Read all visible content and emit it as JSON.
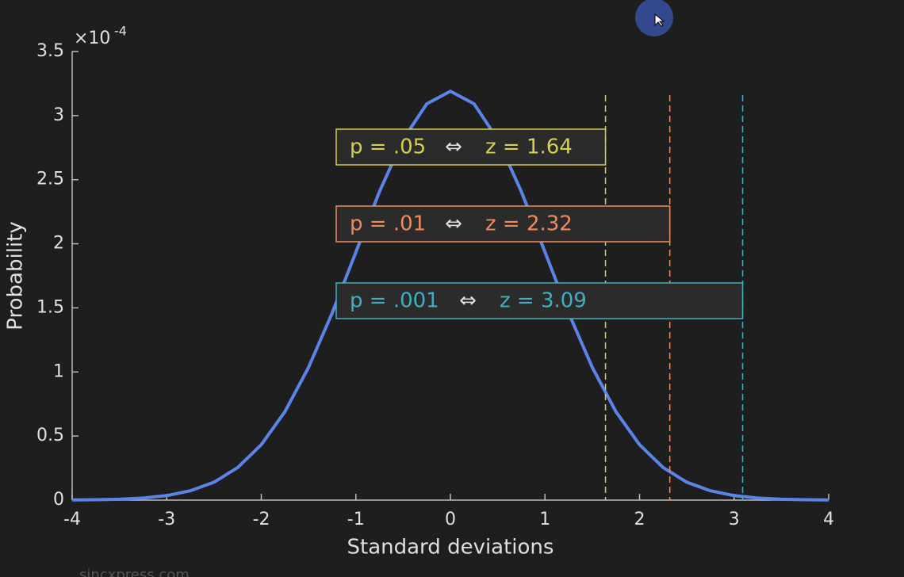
{
  "chart_data": {
    "type": "line",
    "x_label": "Standard deviations",
    "y_label": "Probability",
    "y_multiplier": "×10",
    "y_multiplier_exponent": "-4",
    "x": [
      -4,
      -3.75,
      -3.5,
      -3.25,
      -3,
      -2.75,
      -2.5,
      -2.25,
      -2,
      -1.75,
      -1.5,
      -1.25,
      -1,
      -0.75,
      -0.5,
      -0.25,
      0,
      0.25,
      0.5,
      0.75,
      1,
      1.25,
      1.5,
      1.75,
      2,
      2.25,
      2.5,
      2.75,
      3,
      3.25,
      3.5,
      3.75,
      4
    ],
    "series": [
      {
        "color": "#5b84e8",
        "values": [
          0.001,
          0.003,
          0.007,
          0.016,
          0.035,
          0.073,
          0.14,
          0.254,
          0.432,
          0.69,
          1.036,
          1.46,
          1.935,
          2.408,
          2.815,
          3.092,
          3.19,
          3.092,
          2.815,
          2.408,
          1.935,
          1.46,
          1.036,
          0.69,
          0.432,
          0.254,
          0.14,
          0.073,
          0.035,
          0.016,
          0.007,
          0.003,
          0.001
        ]
      }
    ],
    "xlim": [
      -4,
      4
    ],
    "xticks": [
      -4,
      -3,
      -2,
      -1,
      0,
      1,
      2,
      3,
      4
    ],
    "ylim": [
      0,
      3.5
    ],
    "yticks": [
      0,
      0.5,
      1,
      1.5,
      2,
      2.5,
      3,
      3.5
    ],
    "annotations": [
      {
        "p": "p = .05",
        "arrow": "⇔",
        "z": "z = 1.64",
        "x": 1.64,
        "color": "#d8cf4a"
      },
      {
        "p": "p = .01",
        "arrow": "⇔",
        "z": "z = 2.32",
        "x": 2.32,
        "color": "#ef8a5c"
      },
      {
        "p": "p = .001",
        "arrow": "⇔",
        "z": "z = 3.09",
        "x": 3.09,
        "color": "#3eb0c2"
      }
    ],
    "watermark": "sincxpress.com"
  }
}
